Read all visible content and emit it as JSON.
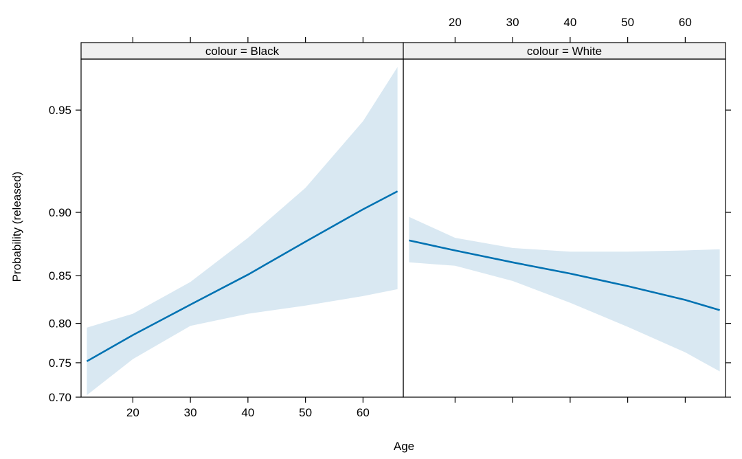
{
  "chart_data": {
    "type": "line",
    "layout": "trellis-2-panels",
    "xlabel": "Age",
    "ylabel": "Probability (released)",
    "xlim": [
      11,
      67
    ],
    "ylim": [
      0.7,
      0.965
    ],
    "y_scale": "logit",
    "x_ticks": [
      20,
      30,
      40,
      50,
      60
    ],
    "y_ticks": [
      0.7,
      0.75,
      0.8,
      0.85,
      0.9,
      0.95
    ],
    "y_tick_labels": [
      "0.70",
      "0.75",
      "0.80",
      "0.85",
      "0.90",
      "0.95"
    ],
    "x_tick_labels": [
      "20",
      "30",
      "40",
      "50",
      "60"
    ],
    "line_color": "#0072b2",
    "band_color": "#d9e8f2",
    "strip_color": "#f0f0f0",
    "panels": [
      {
        "strip": "colour = Black",
        "x": [
          12,
          20,
          30,
          40,
          50,
          60,
          66
        ],
        "fit": [
          0.752,
          0.786,
          0.821,
          0.851,
          0.879,
          0.902,
          0.913
        ],
        "lower": [
          0.703,
          0.755,
          0.797,
          0.811,
          0.82,
          0.83,
          0.837
        ],
        "upper": [
          0.795,
          0.811,
          0.844,
          0.882,
          0.915,
          0.946,
          0.963
        ]
      },
      {
        "strip": "colour = White",
        "x": [
          12,
          20,
          30,
          40,
          50,
          60,
          66
        ],
        "fit": [
          0.88,
          0.872,
          0.862,
          0.852,
          0.84,
          0.826,
          0.815
        ],
        "lower": [
          0.862,
          0.859,
          0.845,
          0.823,
          0.796,
          0.764,
          0.738
        ],
        "upper": [
          0.897,
          0.882,
          0.874,
          0.871,
          0.871,
          0.872,
          0.873
        ]
      }
    ]
  }
}
